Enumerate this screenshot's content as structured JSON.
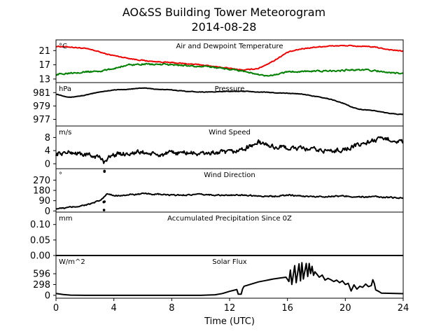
{
  "title_line1": "AO&SS Building Tower Meteorogram",
  "title_line2": "2014-08-28",
  "xlabel": "Time (UTC)",
  "colors": {
    "temperature": "#ee0000",
    "dewpoint": "#008000",
    "default": "#000000"
  },
  "chart_data": {
    "type": "line",
    "x_range": [
      0,
      24
    ],
    "x_ticks": [
      0,
      4,
      8,
      12,
      16,
      20,
      24
    ],
    "x_tick_labels": [
      "0",
      "4",
      "8",
      "12",
      "16",
      "20",
      "24"
    ],
    "panels": [
      {
        "key": "temp",
        "title": "Air and Dewpoint Temperature",
        "unit": "°C",
        "ylim": [
          12,
          24
        ],
        "yticks": [
          13,
          17,
          21
        ],
        "series": [
          {
            "color": "temperature",
            "noise": 0.2,
            "x": [
              0,
              1,
              2,
              2.7,
              3.5,
              4.5,
              5.5,
              6.5,
              8,
              9,
              10,
              11,
              12,
              13,
              14,
              15,
              16,
              17,
              18,
              19,
              20,
              21,
              22,
              23,
              24
            ],
            "y": [
              22.2,
              22,
              21.6,
              21,
              20,
              19.2,
              18.5,
              18,
              17.6,
              17.3,
              17,
              16.5,
              16,
              15.5,
              16,
              18,
              20.5,
              21.5,
              22,
              22.3,
              22.4,
              22.2,
              22,
              21.3,
              20.8
            ]
          },
          {
            "color": "dewpoint",
            "noise": 0.35,
            "x": [
              0,
              1,
              2,
              3,
              3.5,
              4.5,
              5,
              6,
              7,
              8,
              9,
              10,
              11,
              12,
              13,
              14,
              14.5,
              15,
              15.5,
              16,
              17,
              18,
              19,
              20,
              21,
              22,
              23,
              24
            ],
            "y": [
              14.2,
              14.8,
              15,
              15.2,
              15.5,
              16.5,
              17,
              17.2,
              17.1,
              17,
              16.8,
              16.5,
              16.3,
              15.8,
              15.2,
              14.2,
              13.8,
              14,
              14.6,
              15,
              15.2,
              15.2,
              15.3,
              15.5,
              15.6,
              15.4,
              14.8,
              14.5
            ]
          }
        ]
      },
      {
        "key": "pres",
        "title": "Pressure",
        "unit": "hPa",
        "ylim": [
          976,
          982.5
        ],
        "yticks": [
          977,
          979,
          981
        ],
        "series": [
          {
            "color": "default",
            "noise": 0.06,
            "x": [
              0,
              0.5,
              1,
              2,
              3,
              4,
              5,
              6,
              7,
              8,
              9,
              10,
              11,
              12,
              13,
              14,
              15,
              16,
              17,
              18,
              19,
              20,
              20.5,
              21,
              22,
              23,
              24
            ],
            "y": [
              980.8,
              980.5,
              980.3,
              980.6,
              981.1,
              981.4,
              981.5,
              981.7,
              981.5,
              981.4,
              981.2,
              981.1,
              981.1,
              981.2,
              981.2,
              981.1,
              981,
              980.9,
              980.8,
              980.4,
              980,
              979.3,
              978.8,
              978.5,
              978.3,
              977.9,
              977.7
            ]
          }
        ]
      },
      {
        "key": "wspd",
        "title": "Wind Speed",
        "unit": "m/s",
        "ylim": [
          -1.5,
          11.5
        ],
        "yticks": [
          0,
          4,
          8
        ],
        "series": [
          {
            "color": "default",
            "noise": 1.1,
            "x": [
              0,
              1,
              2,
              3,
              3.3,
              3.5,
              4,
              5,
              6,
              7,
              8,
              9,
              10,
              11,
              12,
              13,
              14,
              15,
              16,
              17,
              18,
              19,
              20,
              21,
              22,
              23,
              24
            ],
            "y": [
              3,
              3.5,
              2.8,
              2,
              0.6,
              1.5,
              2.8,
              3.2,
              3.5,
              2.6,
              3.2,
              3.4,
              3,
              3.4,
              3.4,
              4.5,
              6.5,
              5.2,
              4.8,
              4.6,
              4.2,
              3.8,
              4.5,
              5.8,
              7.2,
              7.5,
              6.5
            ]
          }
        ]
      },
      {
        "key": "wdir",
        "title": "Wind Direction",
        "unit": "°",
        "ylim": [
          -10,
          370
        ],
        "yticks": [
          0,
          90,
          180,
          270
        ],
        "series": [
          {
            "color": "default",
            "noise": 9,
            "x": [
              0,
              0.5,
              1,
              1.5,
              2,
              2.5,
              3,
              3.3,
              3.5,
              4,
              5,
              6,
              7,
              8,
              9,
              10,
              11,
              12,
              13,
              14,
              15,
              16,
              17,
              18,
              19,
              20,
              21,
              22,
              23,
              24
            ],
            "y": [
              20,
              24,
              33,
              40,
              52,
              66,
              88,
              118,
              148,
              135,
              140,
              150,
              146,
              138,
              140,
              144,
              140,
              136,
              140,
              132,
              128,
              140,
              130,
              125,
              128,
              130,
              122,
              124,
              118,
              115
            ]
          }
        ],
        "scatter": {
          "x": [
            3.35,
            3.35,
            3.35,
            3.3,
            3.32
          ],
          "y": [
            350,
            345,
            82,
            78,
            8
          ]
        }
      },
      {
        "key": "prcp",
        "title": "Accumulated Precipitation Since 0Z",
        "unit": "mm",
        "ylim": [
          0,
          0.14
        ],
        "yticks": [
          0.0,
          0.05,
          0.1
        ],
        "ytick_labels": [
          "0.00",
          "0.05",
          "0.10"
        ],
        "series": [
          {
            "color": "default",
            "noise": 0,
            "x": [
              0,
              24
            ],
            "y": [
              0,
              0
            ]
          }
        ]
      },
      {
        "key": "solar",
        "title": "Solar Flux",
        "unit": "W/m^2",
        "ylim": [
          -80,
          1100
        ],
        "yticks": [
          0,
          298,
          596
        ],
        "series": [
          {
            "color": "default",
            "noise": 0,
            "x": [
              0,
              0.5,
              1,
              2,
              4,
              6,
              8,
              10,
              11,
              11.5,
              12,
              12.5,
              12.6,
              12.8,
              12.9,
              13,
              13.5,
              14,
              14.5,
              15,
              15.5,
              15.9,
              16.1,
              16.2,
              16.3,
              16.5,
              16.6,
              16.8,
              16.9,
              17,
              17.1,
              17.3,
              17.4,
              17.5,
              17.6,
              17.7,
              17.8,
              17.9,
              18,
              18.2,
              18.4,
              18.6,
              18.8,
              19,
              19.2,
              19.4,
              19.6,
              19.8,
              20,
              20.2,
              20.4,
              20.6,
              20.8,
              21,
              21.2,
              21.4,
              21.6,
              21.8,
              21.9,
              22,
              22.1,
              22.3,
              22.5,
              23,
              23.5,
              24
            ],
            "y": [
              50,
              20,
              5,
              0,
              0,
              0,
              0,
              0,
              15,
              50,
              110,
              160,
              30,
              30,
              180,
              250,
              310,
              370,
              410,
              450,
              480,
              500,
              380,
              700,
              300,
              820,
              350,
              870,
              400,
              900,
              450,
              880,
              520,
              880,
              600,
              800,
              550,
              650,
              600,
              500,
              560,
              420,
              470,
              430,
              380,
              420,
              350,
              400,
              300,
              330,
              120,
              290,
              170,
              250,
              220,
              310,
              240,
              270,
              430,
              330,
              150,
              110,
              60,
              55,
              50,
              45
            ]
          }
        ]
      }
    ]
  }
}
